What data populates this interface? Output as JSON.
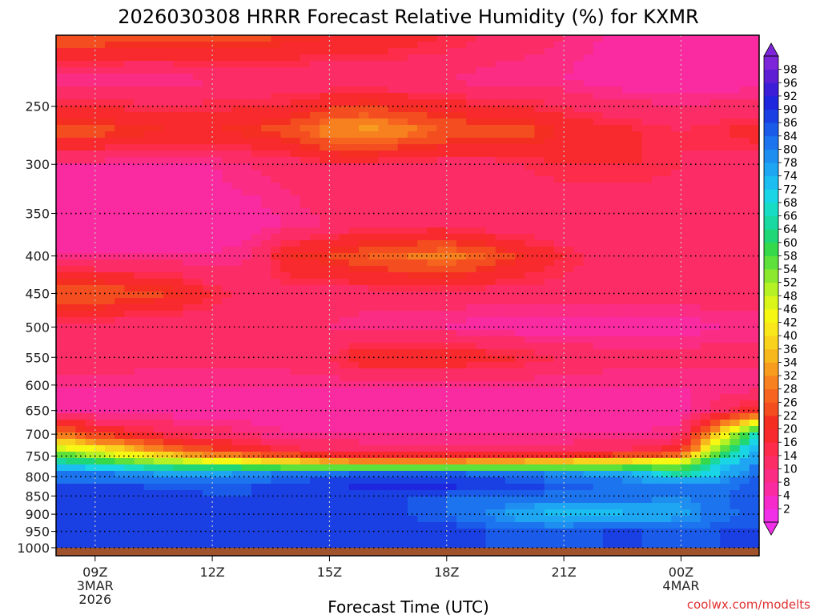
{
  "chart_data": {
    "type": "heatmap",
    "title": "2026030308 HRRR Forecast Relative Humidity (%) for KXMR",
    "xlabel": "Forecast Time (UTC)",
    "ylabel": "",
    "credit": "coolwx.com/modelts",
    "y_scale": "log-pressure",
    "y_range": [
      1000,
      200
    ],
    "y_ticks": [
      250,
      300,
      350,
      400,
      450,
      500,
      550,
      600,
      650,
      700,
      750,
      800,
      850,
      900,
      950,
      1000
    ],
    "x_hours": [
      8,
      9,
      10,
      11,
      12,
      13,
      14,
      15,
      16,
      17,
      18,
      19,
      20,
      21,
      22,
      23,
      24,
      25,
      26
    ],
    "x_ticks": [
      {
        "hour": 9,
        "lines": [
          "09Z",
          "3MAR",
          "2026"
        ]
      },
      {
        "hour": 12,
        "lines": [
          "12Z"
        ]
      },
      {
        "hour": 15,
        "lines": [
          "15Z"
        ]
      },
      {
        "hour": 18,
        "lines": [
          "18Z"
        ]
      },
      {
        "hour": 21,
        "lines": [
          "21Z"
        ]
      },
      {
        "hour": 24,
        "lines": [
          "00Z",
          "4MAR"
        ]
      }
    ],
    "grid": true,
    "colorbar_levels": [
      2,
      4,
      8,
      10,
      14,
      16,
      20,
      22,
      26,
      28,
      32,
      34,
      36,
      40,
      42,
      46,
      48,
      52,
      54,
      58,
      60,
      64,
      66,
      68,
      72,
      74,
      78,
      80,
      84,
      86,
      90,
      92,
      96,
      98
    ],
    "colorbar_colors": [
      "#f22fe8",
      "#f62aca",
      "#fa2ba0",
      "#fb2c84",
      "#fc2d66",
      "#fc2c4a",
      "#f82a2e",
      "#f42f22",
      "#f34d20",
      "#f6641f",
      "#f7801f",
      "#f79c1f",
      "#f7b81e",
      "#f9d21d",
      "#fae71b",
      "#f7f714",
      "#d9f51a",
      "#b4f125",
      "#8be82f",
      "#5ee13a",
      "#35d949",
      "#20d778",
      "#1ad9a0",
      "#18dcc4",
      "#1ad5e6",
      "#1cbef2",
      "#1ea6f2",
      "#1e8ef0",
      "#1c75ee",
      "#1a5be9",
      "#1a40e4",
      "#1e26de",
      "#3d1ed8",
      "#5e1fd4",
      "#7d25d8"
    ],
    "rh_profile_pressures": [
      200,
      230,
      270,
      300,
      360,
      400,
      450,
      500,
      550,
      600,
      650,
      700,
      740,
      770,
      790,
      820,
      850,
      900,
      950,
      1000
    ],
    "rh_values": [
      [
        26,
        8,
        24,
        8,
        6,
        8,
        26,
        12,
        14,
        8,
        8,
        30,
        52,
        70,
        80,
        86,
        88,
        90,
        88,
        86
      ],
      [
        26,
        8,
        24,
        8,
        6,
        8,
        26,
        12,
        14,
        8,
        6,
        22,
        46,
        66,
        80,
        86,
        88,
        90,
        88,
        86
      ],
      [
        24,
        8,
        22,
        8,
        6,
        8,
        24,
        10,
        12,
        8,
        6,
        18,
        38,
        60,
        78,
        86,
        88,
        90,
        88,
        86
      ],
      [
        24,
        8,
        20,
        8,
        6,
        8,
        22,
        10,
        12,
        8,
        6,
        14,
        30,
        56,
        76,
        84,
        88,
        90,
        88,
        86
      ],
      [
        24,
        10,
        20,
        8,
        6,
        8,
        16,
        10,
        12,
        8,
        6,
        12,
        24,
        52,
        76,
        84,
        86,
        90,
        88,
        86
      ],
      [
        24,
        10,
        22,
        10,
        6,
        10,
        12,
        10,
        12,
        8,
        6,
        10,
        20,
        48,
        78,
        86,
        86,
        90,
        88,
        86
      ],
      [
        22,
        10,
        24,
        12,
        8,
        20,
        12,
        10,
        12,
        8,
        6,
        8,
        16,
        44,
        80,
        88,
        86,
        88,
        88,
        86
      ],
      [
        20,
        10,
        32,
        14,
        10,
        22,
        12,
        10,
        14,
        8,
        6,
        8,
        14,
        40,
        82,
        90,
        86,
        88,
        88,
        86
      ],
      [
        20,
        10,
        34,
        14,
        12,
        26,
        12,
        8,
        20,
        8,
        6,
        8,
        12,
        38,
        84,
        92,
        86,
        88,
        88,
        86
      ],
      [
        18,
        10,
        30,
        12,
        12,
        28,
        12,
        8,
        20,
        8,
        6,
        8,
        12,
        38,
        84,
        92,
        86,
        86,
        88,
        86
      ],
      [
        16,
        10,
        26,
        12,
        12,
        30,
        12,
        8,
        20,
        8,
        6,
        8,
        12,
        38,
        84,
        92,
        84,
        84,
        88,
        86
      ],
      [
        14,
        8,
        24,
        12,
        10,
        26,
        12,
        6,
        18,
        8,
        6,
        8,
        12,
        40,
        82,
        90,
        84,
        80,
        86,
        86
      ],
      [
        12,
        8,
        24,
        14,
        10,
        20,
        12,
        6,
        16,
        8,
        6,
        8,
        12,
        42,
        80,
        88,
        84,
        74,
        84,
        86
      ],
      [
        10,
        8,
        20,
        16,
        10,
        16,
        12,
        6,
        14,
        8,
        6,
        8,
        12,
        44,
        78,
        86,
        82,
        72,
        84,
        86
      ],
      [
        8,
        6,
        18,
        16,
        10,
        12,
        12,
        6,
        12,
        8,
        6,
        8,
        14,
        46,
        76,
        84,
        82,
        72,
        86,
        86
      ],
      [
        8,
        6,
        16,
        16,
        10,
        10,
        12,
        6,
        12,
        8,
        6,
        8,
        16,
        50,
        72,
        82,
        82,
        74,
        86,
        86
      ],
      [
        8,
        6,
        14,
        14,
        10,
        10,
        12,
        6,
        12,
        8,
        6,
        10,
        20,
        54,
        62,
        80,
        80,
        76,
        84,
        86
      ],
      [
        8,
        6,
        16,
        12,
        10,
        10,
        12,
        8,
        12,
        8,
        12,
        40,
        58,
        70,
        72,
        80,
        84,
        82,
        86,
        86
      ],
      [
        8,
        6,
        18,
        12,
        10,
        10,
        12,
        8,
        12,
        8,
        20,
        70,
        78,
        80,
        84,
        86,
        86,
        86,
        86,
        86
      ]
    ]
  }
}
